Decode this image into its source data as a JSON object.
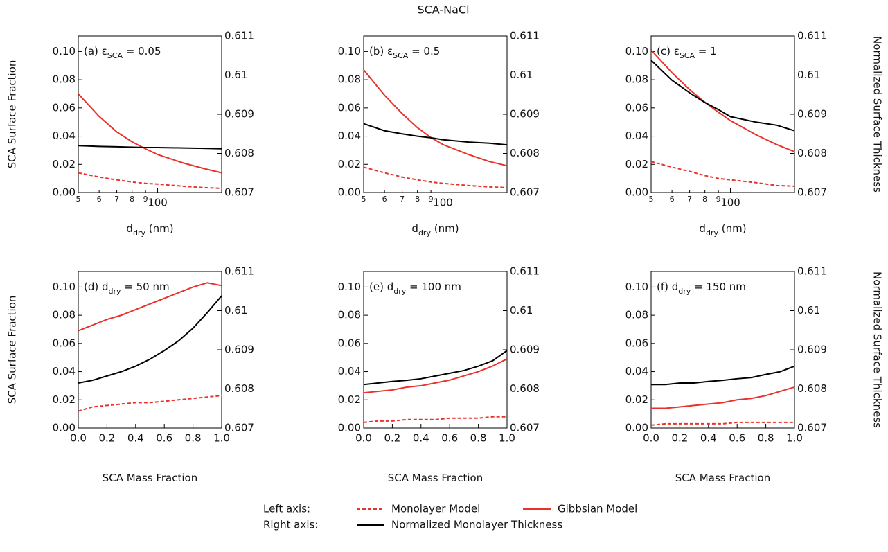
{
  "title": "SCA-NaCl",
  "legend": {
    "left_label": "Left axis:",
    "right_label": "Right axis:",
    "entries": [
      {
        "name": "Monolayer Model",
        "color": "#e8322a",
        "dash": true,
        "axis": "y"
      },
      {
        "name": "Gibbsian Model",
        "color": "#e8322a",
        "dash": false,
        "axis": "y"
      },
      {
        "name": "Normalized Monolayer Thickness",
        "color": "#000000",
        "dash": false,
        "axis": "y2"
      }
    ]
  },
  "chart_data": [
    {
      "type": "line",
      "annotation": {
        "label": "(a) ε",
        "sub": "SCA",
        "rest": " = 0.05"
      },
      "ylabel": "SCA Surface Fraction",
      "xlabel": {
        "text": "d",
        "sub": "dry",
        "rest": " (nm)"
      },
      "log_x": true,
      "x": [
        50,
        60,
        70,
        80,
        90,
        100,
        125,
        150,
        175
      ],
      "xlim": [
        50,
        175
      ],
      "xticks": [
        {
          "value": 50,
          "label": "5"
        },
        {
          "value": 60,
          "label": "6"
        },
        {
          "value": 70,
          "label": "7"
        },
        {
          "value": 80,
          "label": "8"
        },
        {
          "value": 90,
          "label": "9"
        },
        100
      ],
      "ylim": [
        0,
        0.111
      ],
      "yticks": [
        {
          "value": 0,
          "label": "0.00"
        },
        0.02,
        0.04,
        0.06,
        0.08,
        {
          "value": 0.1,
          "label": "0.10"
        }
      ],
      "y2lim": [
        0.607,
        0.611
      ],
      "y2ticks": [
        0.607,
        0.608,
        0.609,
        0.61,
        0.611
      ],
      "series": [
        {
          "values": [
            0.014,
            0.011,
            0.009,
            0.0075,
            0.0065,
            0.006,
            0.0045,
            0.0035,
            0.003
          ]
        },
        {
          "values": [
            0.07,
            0.054,
            0.043,
            0.036,
            0.031,
            0.027,
            0.021,
            0.017,
            0.014
          ]
        },
        {
          "values": [
            0.6082,
            0.60818,
            0.60817,
            0.60816,
            0.60815,
            0.60815,
            0.60814,
            0.60813,
            0.60812
          ]
        }
      ]
    },
    {
      "type": "line",
      "annotation": {
        "label": "(b) ε",
        "sub": "SCA",
        "rest": " = 0.5"
      },
      "xlabel": {
        "text": "d",
        "sub": "dry",
        "rest": " (nm)"
      },
      "log_x": true,
      "x": [
        50,
        60,
        70,
        80,
        90,
        100,
        125,
        150,
        175
      ],
      "xlim": [
        50,
        175
      ],
      "xticks": [
        {
          "value": 50,
          "label": "5"
        },
        {
          "value": 60,
          "label": "6"
        },
        {
          "value": 70,
          "label": "7"
        },
        {
          "value": 80,
          "label": "8"
        },
        {
          "value": 90,
          "label": "9"
        },
        100
      ],
      "ylim": [
        0,
        0.111
      ],
      "yticks": [
        {
          "value": 0,
          "label": "0.00"
        },
        0.02,
        0.04,
        0.06,
        0.08,
        {
          "value": 0.1,
          "label": "0.10"
        }
      ],
      "y2lim": [
        0.607,
        0.611
      ],
      "y2ticks": [
        0.607,
        0.608,
        0.609,
        0.61,
        0.611
      ],
      "series": [
        {
          "values": [
            0.018,
            0.014,
            0.011,
            0.009,
            0.0075,
            0.0065,
            0.005,
            0.004,
            0.0035
          ]
        },
        {
          "values": [
            0.087,
            0.069,
            0.056,
            0.046,
            0.039,
            0.034,
            0.027,
            0.022,
            0.019
          ]
        },
        {
          "values": [
            0.60876,
            0.60858,
            0.6085,
            0.60844,
            0.6084,
            0.60835,
            0.60829,
            0.60826,
            0.60822
          ]
        }
      ]
    },
    {
      "type": "line",
      "annotation": {
        "label": "(c) ε",
        "sub": "SCA",
        "rest": " = 1"
      },
      "y2label": "Normalized Surface Thickness",
      "xlabel": {
        "text": "d",
        "sub": "dry",
        "rest": " (nm)"
      },
      "log_x": true,
      "x": [
        50,
        60,
        70,
        80,
        90,
        100,
        125,
        150,
        175
      ],
      "xlim": [
        50,
        175
      ],
      "xticks": [
        {
          "value": 50,
          "label": "5"
        },
        {
          "value": 60,
          "label": "6"
        },
        {
          "value": 70,
          "label": "7"
        },
        {
          "value": 80,
          "label": "8"
        },
        {
          "value": 90,
          "label": "9"
        },
        100
      ],
      "ylim": [
        0,
        0.111
      ],
      "yticks": [
        {
          "value": 0,
          "label": "0.00"
        },
        0.02,
        0.04,
        0.06,
        0.08,
        {
          "value": 0.1,
          "label": "0.10"
        }
      ],
      "y2lim": [
        0.607,
        0.611
      ],
      "y2ticks": [
        0.607,
        0.608,
        0.609,
        0.61,
        0.611
      ],
      "series": [
        {
          "values": [
            0.022,
            0.018,
            0.015,
            0.012,
            0.01,
            0.009,
            0.007,
            0.005,
            0.0045
          ]
        },
        {
          "values": [
            0.101,
            0.085,
            0.073,
            0.064,
            0.057,
            0.051,
            0.041,
            0.034,
            0.029
          ]
        },
        {
          "values": [
            0.61038,
            0.60987,
            0.60955,
            0.6093,
            0.60912,
            0.60894,
            0.6088,
            0.60872,
            0.60858
          ]
        }
      ]
    },
    {
      "type": "line",
      "annotation": {
        "label": "(d) d",
        "sub": "dry",
        "rest": " = 50 nm"
      },
      "ylabel": "SCA Surface Fraction",
      "xlabel": {
        "text": "SCA Mass Fraction"
      },
      "log_x": false,
      "x": [
        0,
        0.1,
        0.2,
        0.3,
        0.4,
        0.5,
        0.6,
        0.7,
        0.8,
        0.9,
        1
      ],
      "xlim": [
        0,
        1
      ],
      "xticks": [
        {
          "value": 0,
          "label": "0.0"
        },
        0.2,
        0.4,
        0.6,
        0.8,
        {
          "value": 1,
          "label": "1.0"
        }
      ],
      "ylim": [
        0,
        0.111
      ],
      "yticks": [
        {
          "value": 0,
          "label": "0.00"
        },
        0.02,
        0.04,
        0.06,
        0.08,
        {
          "value": 0.1,
          "label": "0.10"
        }
      ],
      "y2lim": [
        0.607,
        0.611
      ],
      "y2ticks": [
        0.607,
        0.608,
        0.609,
        0.61,
        0.611
      ],
      "series": [
        {
          "values": [
            0.012,
            0.015,
            0.016,
            0.017,
            0.018,
            0.018,
            0.019,
            0.02,
            0.021,
            0.022,
            0.023
          ]
        },
        {
          "values": [
            0.069,
            0.073,
            0.077,
            0.08,
            0.084,
            0.088,
            0.092,
            0.096,
            0.1,
            0.103,
            0.101
          ]
        },
        {
          "values": [
            0.60815,
            0.60822,
            0.60833,
            0.60844,
            0.60858,
            0.60876,
            0.60898,
            0.60923,
            0.60955,
            0.60995,
            0.61038
          ]
        }
      ]
    },
    {
      "type": "line",
      "annotation": {
        "label": "(e) d",
        "sub": "dry",
        "rest": " = 100 nm"
      },
      "xlabel": {
        "text": "SCA Mass Fraction"
      },
      "log_x": false,
      "x": [
        0,
        0.1,
        0.2,
        0.3,
        0.4,
        0.5,
        0.6,
        0.7,
        0.8,
        0.9,
        1
      ],
      "xlim": [
        0,
        1
      ],
      "xticks": [
        {
          "value": 0,
          "label": "0.0"
        },
        0.2,
        0.4,
        0.6,
        0.8,
        {
          "value": 1,
          "label": "1.0"
        }
      ],
      "ylim": [
        0,
        0.111
      ],
      "yticks": [
        {
          "value": 0,
          "label": "0.00"
        },
        0.02,
        0.04,
        0.06,
        0.08,
        {
          "value": 0.1,
          "label": "0.10"
        }
      ],
      "y2lim": [
        0.607,
        0.611
      ],
      "y2ticks": [
        0.607,
        0.608,
        0.609,
        0.61,
        0.611
      ],
      "series": [
        {
          "values": [
            0.004,
            0.005,
            0.005,
            0.006,
            0.006,
            0.006,
            0.007,
            0.007,
            0.007,
            0.008,
            0.008
          ]
        },
        {
          "values": [
            0.025,
            0.026,
            0.027,
            0.029,
            0.03,
            0.032,
            0.034,
            0.037,
            0.04,
            0.044,
            0.049
          ]
        },
        {
          "values": [
            0.60811,
            0.60815,
            0.60819,
            0.60822,
            0.60826,
            0.60833,
            0.6084,
            0.60847,
            0.60858,
            0.60872,
            0.60898
          ]
        }
      ]
    },
    {
      "type": "line",
      "annotation": {
        "label": "(f) d",
        "sub": "dry",
        "rest": " = 150 nm"
      },
      "y2label": "Normalized Surface Thickness",
      "xlabel": {
        "text": "SCA Mass Fraction"
      },
      "log_x": false,
      "x": [
        0,
        0.1,
        0.2,
        0.3,
        0.4,
        0.5,
        0.6,
        0.7,
        0.8,
        0.9,
        1
      ],
      "xlim": [
        0,
        1
      ],
      "xticks": [
        {
          "value": 0,
          "label": "0.0"
        },
        0.2,
        0.4,
        0.6,
        0.8,
        {
          "value": 1,
          "label": "1.0"
        }
      ],
      "ylim": [
        0,
        0.111
      ],
      "yticks": [
        {
          "value": 0,
          "label": "0.00"
        },
        0.02,
        0.04,
        0.06,
        0.08,
        {
          "value": 0.1,
          "label": "0.10"
        }
      ],
      "y2lim": [
        0.607,
        0.611
      ],
      "y2ticks": [
        0.607,
        0.608,
        0.609,
        0.61,
        0.611
      ],
      "series": [
        {
          "values": [
            0.002,
            0.003,
            0.003,
            0.003,
            0.003,
            0.003,
            0.004,
            0.004,
            0.004,
            0.004,
            0.004
          ]
        },
        {
          "values": [
            0.014,
            0.014,
            0.015,
            0.016,
            0.017,
            0.018,
            0.02,
            0.021,
            0.023,
            0.026,
            0.029
          ]
        },
        {
          "values": [
            0.60811,
            0.60811,
            0.60815,
            0.60815,
            0.60819,
            0.60822,
            0.60826,
            0.60829,
            0.60837,
            0.60844,
            0.60858
          ]
        }
      ]
    }
  ]
}
